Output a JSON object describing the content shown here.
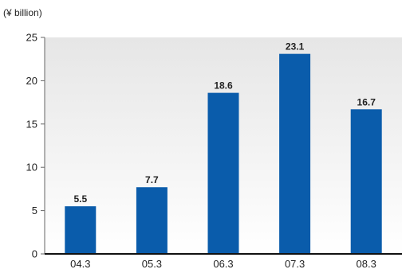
{
  "chart_data": {
    "type": "bar",
    "unit_label": "(¥ billion)",
    "categories": [
      "04.3",
      "05.3",
      "06.3",
      "07.3",
      "08.3"
    ],
    "values": [
      5.5,
      7.7,
      18.6,
      23.1,
      16.7
    ],
    "data_labels": [
      "5.5",
      "7.7",
      "18.6",
      "23.1",
      "16.7"
    ],
    "ylim": [
      0,
      25
    ],
    "yticks": [
      0,
      5,
      10,
      15,
      20,
      25
    ],
    "bar_color": "#0a5cab",
    "background_gradient": [
      "#e6e6e6",
      "#ffffff"
    ],
    "grid": false,
    "legend": "none"
  }
}
